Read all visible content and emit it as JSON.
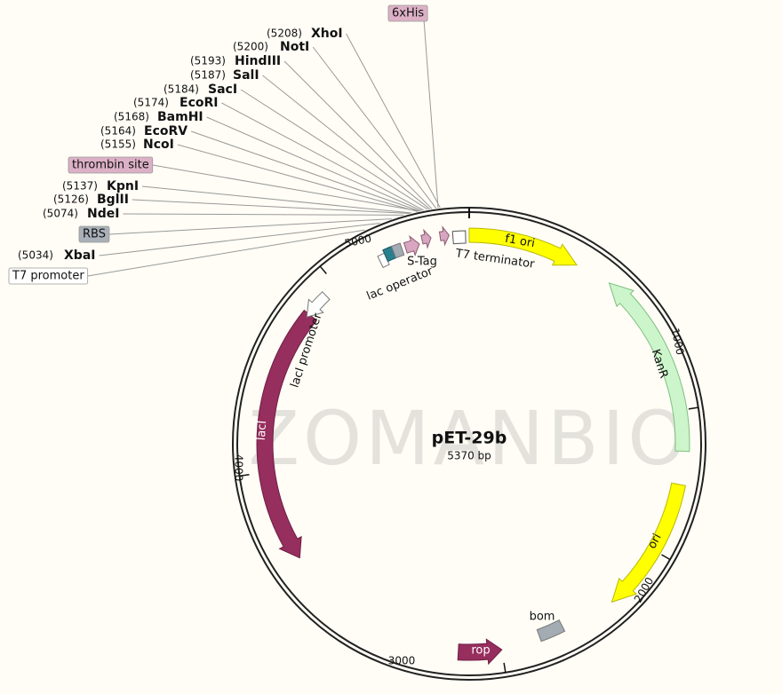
{
  "plasmid": {
    "name": "pET-29b",
    "length_label": "5370 bp"
  },
  "watermark": "ZOMANBIO",
  "ruler_ticks": [
    "1000",
    "2000",
    "3000",
    "4000",
    "5000"
  ],
  "sites": [
    {
      "position": "(5208)",
      "name": "XhoI"
    },
    {
      "position": "(5200)",
      "name": "NotI"
    },
    {
      "position": "(5193)",
      "name": "HindIII"
    },
    {
      "position": "(5187)",
      "name": "SalI"
    },
    {
      "position": "(5184)",
      "name": "SacI"
    },
    {
      "position": "(5174)",
      "name": "EcoRI"
    },
    {
      "position": "(5168)",
      "name": "BamHI"
    },
    {
      "position": "(5164)",
      "name": "EcoRV"
    },
    {
      "position": "(5155)",
      "name": "NcoI"
    },
    {
      "position": "(5137)",
      "name": "KpnI"
    },
    {
      "position": "(5126)",
      "name": "BglII"
    },
    {
      "position": "(5074)",
      "name": "NdeI"
    },
    {
      "position": "(5034)",
      "name": "XbaI"
    }
  ],
  "callout_features": [
    "6xHis",
    "thrombin site",
    "RBS",
    "T7 promoter"
  ],
  "features": [
    "f1 ori",
    "KanR",
    "ori",
    "bom",
    "rop",
    "lacI",
    "lacI promoter",
    "lac operator",
    "S-Tag",
    "T7 terminator"
  ]
}
